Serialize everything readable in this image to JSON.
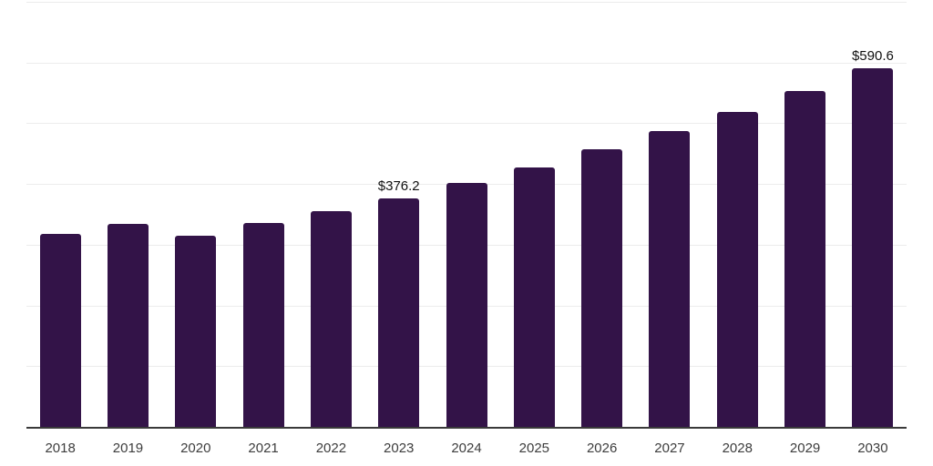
{
  "chart_data": {
    "type": "bar",
    "title": "",
    "xlabel": "",
    "ylabel": "",
    "categories": [
      "2018",
      "2019",
      "2020",
      "2021",
      "2022",
      "2023",
      "2024",
      "2025",
      "2026",
      "2027",
      "2028",
      "2029",
      "2030"
    ],
    "values": [
      318.0,
      334.0,
      315.0,
      336.0,
      355.0,
      376.2,
      401.3,
      428.0,
      456.5,
      486.9,
      519.3,
      553.9,
      590.6
    ],
    "data_labels": [
      "",
      "",
      "",
      "",
      "",
      "$376.2",
      "",
      "",
      "",
      "",
      "",
      "",
      "$590.6"
    ],
    "ylim": [
      0,
      700
    ],
    "gridline_interval": 100,
    "grid": "horizontal",
    "legend_position": "none",
    "y_tick_labels_visible": false,
    "colors": {
      "bar": "#331348",
      "gridline": "#ececec",
      "axis_line": "#3a3a3a",
      "tick_label": "#3d3d3d",
      "data_label": "#101010",
      "background": "#ffffff"
    }
  }
}
